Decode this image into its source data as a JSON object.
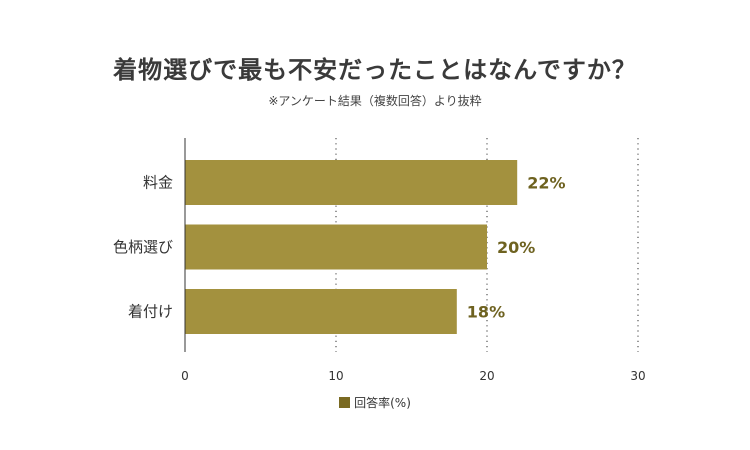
{
  "title": "着物選びで最も不安だったことはなんですか？",
  "subtitle": "※アンケート結果（複数回答）より抜粋",
  "colors": {
    "bar": "#a3913e",
    "value_label": "#6e6220",
    "legend_swatch": "#7a6a22",
    "axis": "#333333",
    "grid": "#555555"
  },
  "chart_data": {
    "type": "bar",
    "orientation": "horizontal",
    "categories": [
      "料金",
      "色柄選び",
      "着付け"
    ],
    "series": [
      {
        "name": "回答率(%)",
        "values": [
          22,
          20,
          18
        ]
      }
    ],
    "value_labels": [
      "22%",
      "20%",
      "18%"
    ],
    "xlim": [
      0,
      30
    ],
    "xticks": [
      0,
      10,
      20,
      30
    ],
    "xtick_labels": [
      "0",
      "10",
      "20",
      "30"
    ],
    "grid": "vertical dotted",
    "legend_placement": "bottom-center"
  }
}
